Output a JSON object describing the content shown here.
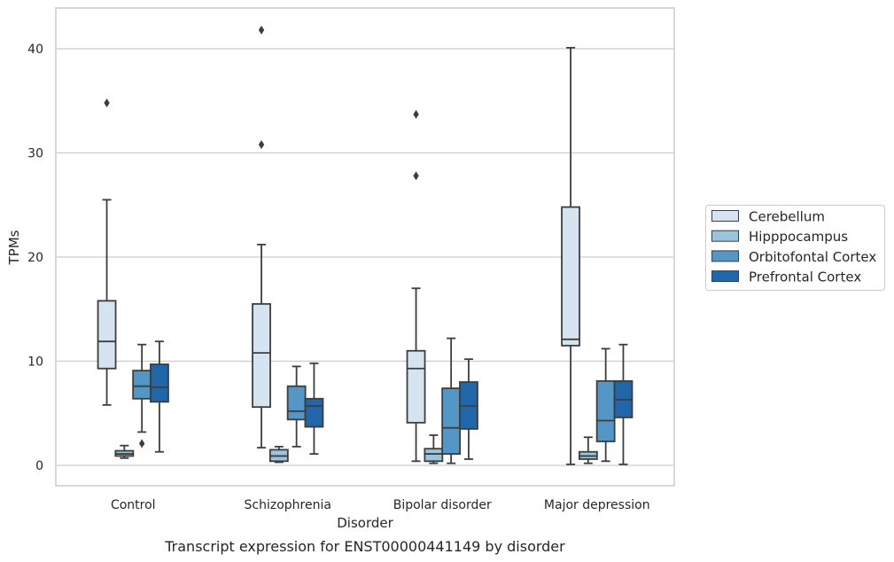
{
  "caption": "Transcript expression for ENST00000441149 by disorder",
  "chart_data": {
    "type": "boxplot",
    "xlabel": "Disorder",
    "ylabel": "TPMs",
    "ylim": [
      -1.9,
      43.9
    ],
    "yticks": [
      0,
      10,
      20,
      30,
      40
    ],
    "grid": "horizontal",
    "legend_position": "right",
    "categories": [
      "Control",
      "Schizophrenia",
      "Bipolar disorder",
      "Major depression"
    ],
    "series": [
      {
        "name": "Cerebellum",
        "color": "#d6e4f2",
        "boxes": [
          {
            "whislo": 5.8,
            "q1": 9.3,
            "med": 11.9,
            "q3": 15.8,
            "whishi": 25.5,
            "fliers": [
              34.8
            ]
          },
          {
            "whislo": 1.7,
            "q1": 5.6,
            "med": 10.8,
            "q3": 15.5,
            "whishi": 21.2,
            "fliers": [
              30.8,
              41.8
            ]
          },
          {
            "whislo": 0.4,
            "q1": 4.1,
            "med": 9.3,
            "q3": 11.0,
            "whishi": 17.0,
            "fliers": [
              27.8,
              33.7
            ]
          },
          {
            "whislo": 0.1,
            "q1": 11.5,
            "med": 12.1,
            "q3": 24.8,
            "whishi": 40.1,
            "fliers": []
          }
        ]
      },
      {
        "name": "Hipppocampus",
        "color": "#9ac3de",
        "boxes": [
          {
            "whislo": 0.7,
            "q1": 0.9,
            "med": 1.1,
            "q3": 1.4,
            "whishi": 1.9,
            "fliers": []
          },
          {
            "whislo": 0.3,
            "q1": 0.4,
            "med": 0.9,
            "q3": 1.5,
            "whishi": 1.8,
            "fliers": []
          },
          {
            "whislo": 0.2,
            "q1": 0.4,
            "med": 1.1,
            "q3": 1.6,
            "whishi": 2.9,
            "fliers": []
          },
          {
            "whislo": 0.2,
            "q1": 0.6,
            "med": 0.9,
            "q3": 1.3,
            "whishi": 2.7,
            "fliers": []
          }
        ]
      },
      {
        "name": "Orbitofontal Cortex",
        "color": "#5497c6",
        "boxes": [
          {
            "whislo": 3.2,
            "q1": 6.4,
            "med": 7.6,
            "q3": 9.1,
            "whishi": 11.6,
            "fliers": [
              2.1
            ]
          },
          {
            "whislo": 1.8,
            "q1": 4.4,
            "med": 5.2,
            "q3": 7.6,
            "whishi": 9.5,
            "fliers": []
          },
          {
            "whislo": 0.2,
            "q1": 1.1,
            "med": 3.6,
            "q3": 7.4,
            "whishi": 12.2,
            "fliers": []
          },
          {
            "whislo": 0.4,
            "q1": 2.3,
            "med": 4.3,
            "q3": 8.1,
            "whishi": 11.2,
            "fliers": []
          }
        ]
      },
      {
        "name": "Prefrontal Cortex",
        "color": "#2166a8",
        "boxes": [
          {
            "whislo": 1.3,
            "q1": 6.1,
            "med": 7.5,
            "q3": 9.7,
            "whishi": 11.9,
            "fliers": []
          },
          {
            "whislo": 1.1,
            "q1": 3.7,
            "med": 5.7,
            "q3": 6.4,
            "whishi": 9.8,
            "fliers": []
          },
          {
            "whislo": 0.6,
            "q1": 3.5,
            "med": 5.7,
            "q3": 8.0,
            "whishi": 10.2,
            "fliers": []
          },
          {
            "whislo": 0.1,
            "q1": 4.6,
            "med": 6.3,
            "q3": 8.1,
            "whishi": 11.6,
            "fliers": []
          }
        ]
      }
    ]
  }
}
